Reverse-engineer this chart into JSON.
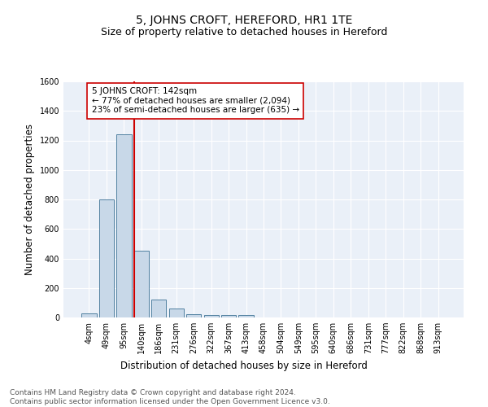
{
  "title": "5, JOHNS CROFT, HEREFORD, HR1 1TE",
  "subtitle": "Size of property relative to detached houses in Hereford",
  "xlabel": "Distribution of detached houses by size in Hereford",
  "ylabel": "Number of detached properties",
  "bin_labels": [
    "4sqm",
    "49sqm",
    "95sqm",
    "140sqm",
    "186sqm",
    "231sqm",
    "276sqm",
    "322sqm",
    "367sqm",
    "413sqm",
    "458sqm",
    "504sqm",
    "549sqm",
    "595sqm",
    "640sqm",
    "686sqm",
    "731sqm",
    "777sqm",
    "822sqm",
    "868sqm",
    "913sqm"
  ],
  "bar_values": [
    25,
    800,
    1240,
    455,
    120,
    60,
    20,
    18,
    18,
    18,
    0,
    0,
    0,
    0,
    0,
    0,
    0,
    0,
    0,
    0,
    0
  ],
  "bar_color": "#c8d8e8",
  "bar_edge_color": "#5080a0",
  "vline_color": "#cc0000",
  "annotation_text": "5 JOHNS CROFT: 142sqm\n← 77% of detached houses are smaller (2,094)\n23% of semi-detached houses are larger (635) →",
  "annotation_box_color": "#ffffff",
  "annotation_box_edge": "#cc0000",
  "ylim": [
    0,
    1600
  ],
  "yticks": [
    0,
    200,
    400,
    600,
    800,
    1000,
    1200,
    1400,
    1600
  ],
  "background_color": "#eaf0f8",
  "footer_text": "Contains HM Land Registry data © Crown copyright and database right 2024.\nContains public sector information licensed under the Open Government Licence v3.0.",
  "title_fontsize": 10,
  "subtitle_fontsize": 9,
  "xlabel_fontsize": 8.5,
  "ylabel_fontsize": 8.5,
  "tick_fontsize": 7,
  "annotation_fontsize": 7.5,
  "footer_fontsize": 6.5
}
